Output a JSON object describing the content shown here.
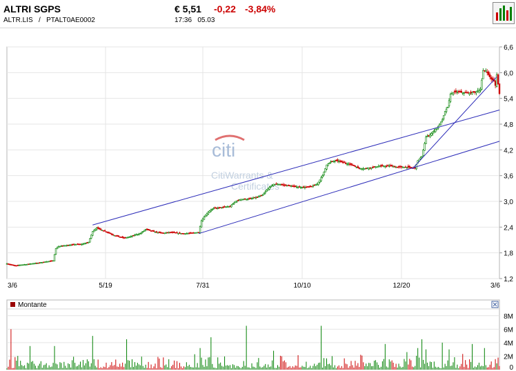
{
  "header": {
    "title": "ALTRI SGPS",
    "symbol": "ALTR.LIS",
    "divider": "/",
    "isin": "PTALT0AE0002",
    "price": "€ 5,51",
    "change": "-0,22",
    "change_pct": "-3,84%",
    "time": "17:36",
    "date": "05.03",
    "down_color": "#cc0000"
  },
  "chart_button": {
    "icon": "bar-chart-icon"
  },
  "watermark": {
    "logo": "citi",
    "line1": "CitiWarrants &",
    "line2": "Certificates"
  },
  "chart_data": [
    {
      "type": "candlestick",
      "y_ticks": [
        "6,6",
        "6,0",
        "5,4",
        "4,8",
        "4,2",
        "3,6",
        "3,0",
        "2,4",
        "1,8",
        "1,2"
      ],
      "y_values": [
        6.6,
        6.0,
        5.4,
        4.8,
        4.2,
        3.6,
        3.0,
        2.4,
        1.8,
        1.2
      ],
      "ylim": [
        1.2,
        6.6
      ],
      "x_ticks": [
        "3/6",
        "5/19",
        "7/31",
        "10/10",
        "12/20",
        "3/6"
      ],
      "grid": true,
      "up_color": "#008000",
      "down_color": "#cc0000",
      "trendline_color": "#2a2ab8",
      "price_series": [
        [
          0,
          1.55
        ],
        [
          3,
          1.52
        ],
        [
          6,
          1.5
        ],
        [
          10,
          1.52
        ],
        [
          14,
          1.53
        ],
        [
          18,
          1.55
        ],
        [
          22,
          1.56
        ],
        [
          26,
          1.58
        ],
        [
          30,
          1.6
        ],
        [
          34,
          1.62
        ],
        [
          36,
          1.9
        ],
        [
          38,
          1.95
        ],
        [
          42,
          1.97
        ],
        [
          46,
          1.98
        ],
        [
          50,
          2.0
        ],
        [
          55,
          2.0
        ],
        [
          60,
          2.05
        ],
        [
          63,
          2.3
        ],
        [
          66,
          2.38
        ],
        [
          70,
          2.33
        ],
        [
          74,
          2.28
        ],
        [
          78,
          2.22
        ],
        [
          82,
          2.18
        ],
        [
          86,
          2.15
        ],
        [
          90,
          2.17
        ],
        [
          94,
          2.22
        ],
        [
          98,
          2.25
        ],
        [
          102,
          2.35
        ],
        [
          105,
          2.32
        ],
        [
          110,
          2.28
        ],
        [
          115,
          2.26
        ],
        [
          120,
          2.28
        ],
        [
          125,
          2.26
        ],
        [
          130,
          2.25
        ],
        [
          135,
          2.26
        ],
        [
          138,
          2.27
        ],
        [
          141,
          2.28
        ],
        [
          143,
          2.55
        ],
        [
          146,
          2.68
        ],
        [
          149,
          2.78
        ],
        [
          152,
          2.84
        ],
        [
          156,
          2.85
        ],
        [
          160,
          2.87
        ],
        [
          164,
          2.88
        ],
        [
          168,
          3.0
        ],
        [
          172,
          3.05
        ],
        [
          176,
          3.05
        ],
        [
          180,
          3.07
        ],
        [
          184,
          3.1
        ],
        [
          188,
          3.15
        ],
        [
          192,
          3.3
        ],
        [
          196,
          3.4
        ],
        [
          200,
          3.4
        ],
        [
          204,
          3.38
        ],
        [
          208,
          3.36
        ],
        [
          212,
          3.34
        ],
        [
          216,
          3.33
        ],
        [
          220,
          3.33
        ],
        [
          224,
          3.35
        ],
        [
          228,
          3.4
        ],
        [
          232,
          3.6
        ],
        [
          235,
          3.85
        ],
        [
          238,
          3.92
        ],
        [
          242,
          3.95
        ],
        [
          246,
          3.92
        ],
        [
          250,
          3.88
        ],
        [
          254,
          3.85
        ],
        [
          258,
          3.78
        ],
        [
          262,
          3.76
        ],
        [
          266,
          3.78
        ],
        [
          270,
          3.8
        ],
        [
          274,
          3.82
        ],
        [
          278,
          3.82
        ],
        [
          282,
          3.83
        ],
        [
          286,
          3.8
        ],
        [
          290,
          3.8
        ],
        [
          294,
          3.8
        ],
        [
          298,
          3.78
        ],
        [
          300,
          3.78
        ],
        [
          302,
          3.95
        ],
        [
          305,
          4.05
        ],
        [
          308,
          4.5
        ],
        [
          311,
          4.55
        ],
        [
          314,
          4.65
        ],
        [
          317,
          4.75
        ],
        [
          320,
          4.9
        ],
        [
          322,
          5.1
        ],
        [
          324,
          5.2
        ],
        [
          326,
          5.5
        ],
        [
          329,
          5.55
        ],
        [
          332,
          5.55
        ],
        [
          336,
          5.53
        ],
        [
          340,
          5.52
        ],
        [
          344,
          5.55
        ],
        [
          348,
          5.6
        ],
        [
          350,
          6.05
        ],
        [
          352,
          6.05
        ],
        [
          354,
          5.95
        ],
        [
          356,
          5.85
        ],
        [
          358,
          5.8
        ],
        [
          359,
          5.7
        ],
        [
          360,
          5.95
        ],
        [
          361,
          5.73
        ],
        [
          362,
          5.51
        ]
      ],
      "trendlines": [
        {
          "points": [
            [
              63,
              2.45
            ],
            [
              362,
              5.13
            ]
          ]
        },
        {
          "points": [
            [
              141,
              2.25
            ],
            [
              362,
              4.4
            ]
          ]
        },
        {
          "points": [
            [
              298,
              3.76
            ],
            [
              360,
              5.9
            ]
          ]
        }
      ]
    },
    {
      "type": "bar",
      "legend": "Montante",
      "legend_color": "#990000",
      "y_ticks": [
        "8M",
        "6M",
        "4M",
        "2M",
        "0"
      ],
      "y_values": [
        8,
        6,
        4,
        2,
        0
      ],
      "ylim": [
        0,
        9
      ],
      "up_color": "#008000",
      "down_color": "#cc0000",
      "spikes": [
        [
          3,
          6.0
        ],
        [
          17,
          3.5
        ],
        [
          35,
          3.5
        ],
        [
          63,
          5.0
        ],
        [
          88,
          4.5
        ],
        [
          142,
          3.2
        ],
        [
          150,
          4.8
        ],
        [
          176,
          6.5
        ],
        [
          196,
          2.8
        ],
        [
          231,
          6.5
        ],
        [
          260,
          2.2
        ],
        [
          278,
          3.8
        ],
        [
          294,
          2.6
        ],
        [
          302,
          3.2
        ],
        [
          305,
          4.5
        ],
        [
          308,
          3.0
        ],
        [
          320,
          4.0
        ],
        [
          325,
          3.0
        ],
        [
          342,
          3.8
        ],
        [
          351,
          3.2
        ]
      ]
    }
  ]
}
